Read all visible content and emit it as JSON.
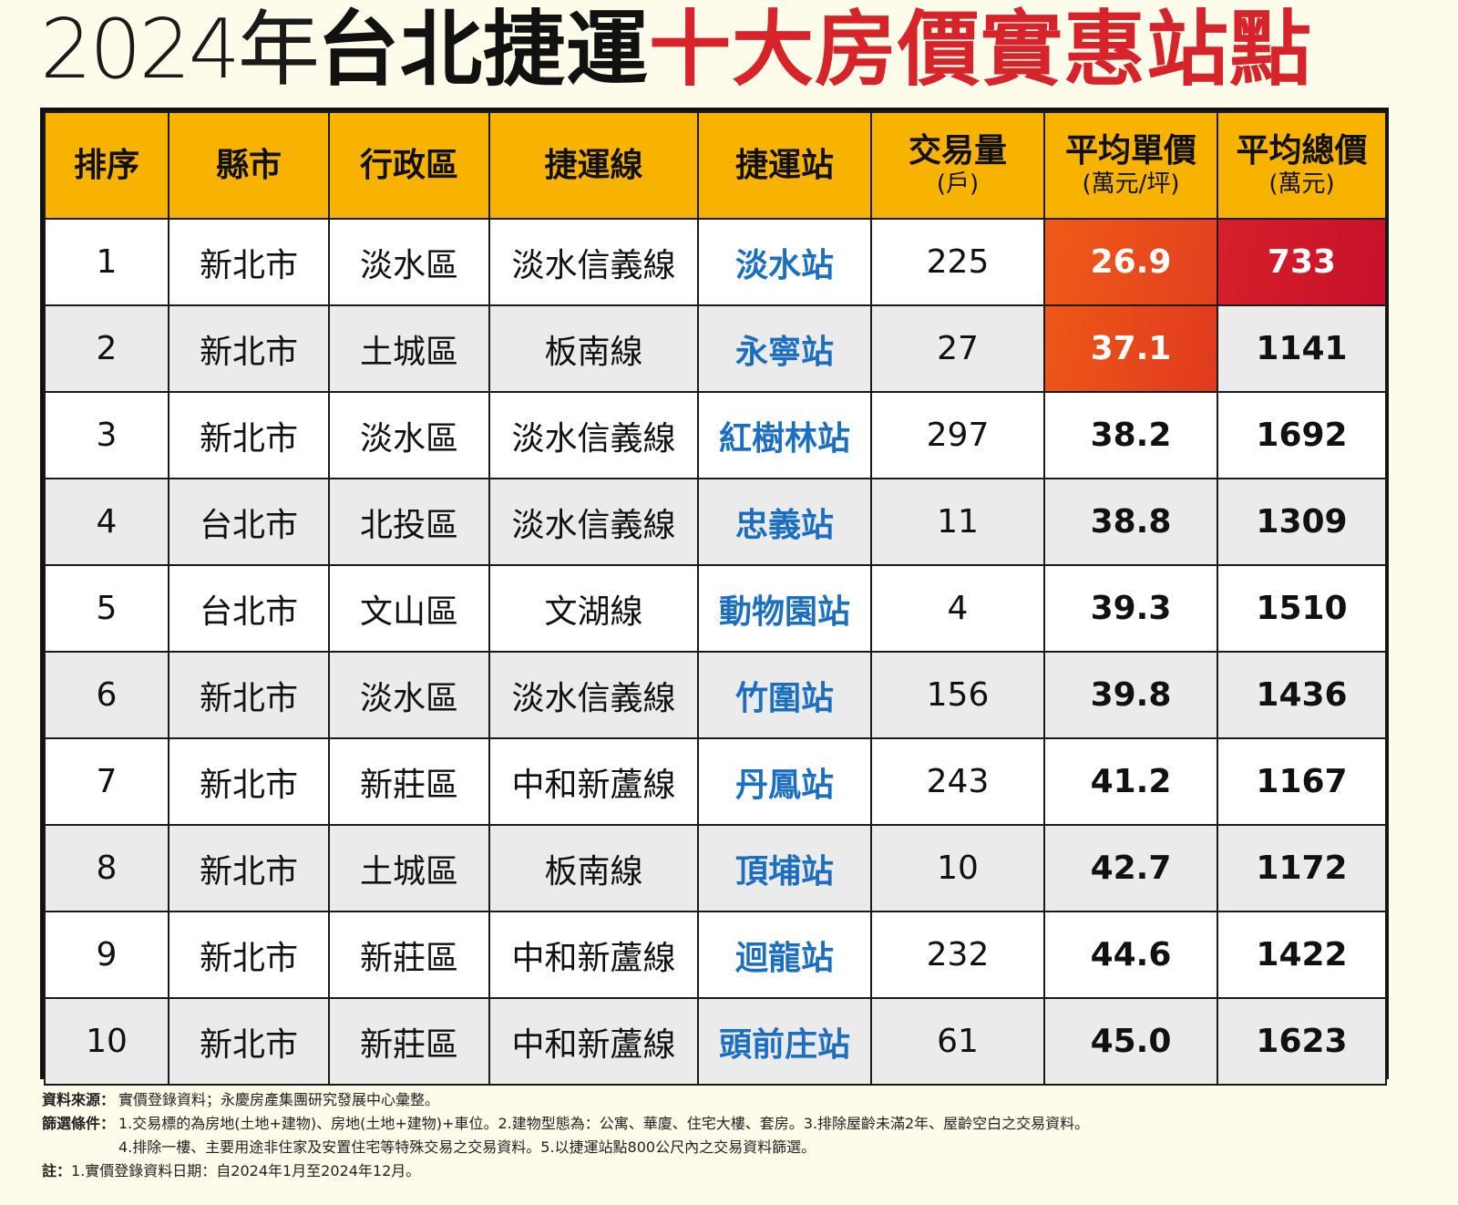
{
  "title": {
    "part1": "2024年",
    "part2": "台北捷運",
    "part3": "十大房價實惠站點"
  },
  "table": {
    "headers": [
      {
        "main": "排序",
        "sub": ""
      },
      {
        "main": "縣市",
        "sub": ""
      },
      {
        "main": "行政區",
        "sub": ""
      },
      {
        "main": "捷運線",
        "sub": ""
      },
      {
        "main": "捷運站",
        "sub": ""
      },
      {
        "main": "交易量",
        "sub": "(戶)"
      },
      {
        "main": "平均單價",
        "sub": "(萬元/坪)"
      },
      {
        "main": "平均總價",
        "sub": "(萬元)"
      }
    ],
    "rows": [
      {
        "rank": "1",
        "city": "新北市",
        "district": "淡水區",
        "line": "淡水信義線",
        "station": "淡水站",
        "volume": "225",
        "unit_price": "26.9",
        "total_price": "733"
      },
      {
        "rank": "2",
        "city": "新北市",
        "district": "土城區",
        "line": "板南線",
        "station": "永寧站",
        "volume": "27",
        "unit_price": "37.1",
        "total_price": "1141"
      },
      {
        "rank": "3",
        "city": "新北市",
        "district": "淡水區",
        "line": "淡水信義線",
        "station": "紅樹林站",
        "volume": "297",
        "unit_price": "38.2",
        "total_price": "1692"
      },
      {
        "rank": "4",
        "city": "台北市",
        "district": "北投區",
        "line": "淡水信義線",
        "station": "忠義站",
        "volume": "11",
        "unit_price": "38.8",
        "total_price": "1309"
      },
      {
        "rank": "5",
        "city": "台北市",
        "district": "文山區",
        "line": "文湖線",
        "station": "動物園站",
        "volume": "4",
        "unit_price": "39.3",
        "total_price": "1510"
      },
      {
        "rank": "6",
        "city": "新北市",
        "district": "淡水區",
        "line": "淡水信義線",
        "station": "竹圍站",
        "volume": "156",
        "unit_price": "39.8",
        "total_price": "1436"
      },
      {
        "rank": "7",
        "city": "新北市",
        "district": "新莊區",
        "line": "中和新蘆線",
        "station": "丹鳳站",
        "volume": "243",
        "unit_price": "41.2",
        "total_price": "1167"
      },
      {
        "rank": "8",
        "city": "新北市",
        "district": "土城區",
        "line": "板南線",
        "station": "頂埔站",
        "volume": "10",
        "unit_price": "42.7",
        "total_price": "1172"
      },
      {
        "rank": "9",
        "city": "新北市",
        "district": "新莊區",
        "line": "中和新蘆線",
        "station": "迴龍站",
        "volume": "232",
        "unit_price": "44.6",
        "total_price": "1422"
      },
      {
        "rank": "10",
        "city": "新北市",
        "district": "新莊區",
        "line": "中和新蘆線",
        "station": "頭前庄站",
        "volume": "61",
        "unit_price": "45.0",
        "total_price": "1623"
      }
    ]
  },
  "notes": {
    "source_label": "資料來源：",
    "source_text": "實價登錄資料；永慶房產集團研究發展中心彙整。",
    "filter_label": "篩選條件：",
    "filter_line1": "1.交易標的為房地(土地+建物)、房地(土地+建物)+車位。2.建物型態為：公寓、華廈、住宅大樓、套房。3.排除屋齡未滿2年、屋齡空白之交易資料。",
    "filter_line2": "4.排除一樓、主要用途非住家及安置住宅等特殊交易之交易資料。5.以捷運站點800公尺內之交易資料篩選。",
    "note_label": "註：",
    "note_text": "1.實價登錄資料日期：自2024年1月至2024年12月。"
  },
  "colors": {
    "header_bg": "#f7b300",
    "station_text": "#1c6fc0",
    "highlight_orange": "#ef5a17",
    "highlight_red": "#c8102a",
    "title_red": "#d7242b"
  }
}
